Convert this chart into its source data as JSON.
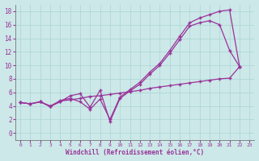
{
  "xlabel": "Windchill (Refroidissement éolien,°C)",
  "bg_color": "#cce8e8",
  "line_color": "#993399",
  "xlim": [
    -0.5,
    23.5
  ],
  "ylim": [
    -1,
    19
  ],
  "xticks": [
    0,
    1,
    2,
    3,
    4,
    5,
    6,
    7,
    8,
    9,
    10,
    11,
    12,
    13,
    14,
    15,
    16,
    17,
    18,
    19,
    20,
    21,
    22,
    23
  ],
  "yticks": [
    0,
    2,
    4,
    6,
    8,
    10,
    12,
    14,
    16,
    18
  ],
  "line1_x": [
    0,
    1,
    2,
    3,
    4,
    5,
    6,
    7,
    8,
    9,
    10,
    11,
    12,
    13,
    14,
    15,
    16,
    17,
    18,
    19,
    20,
    21,
    22
  ],
  "line1_y": [
    4.5,
    4.3,
    4.6,
    3.9,
    4.6,
    5.5,
    5.8,
    3.8,
    6.3,
    1.7,
    5.1,
    6.2,
    7.2,
    8.7,
    10.0,
    11.8,
    13.8,
    15.8,
    16.3,
    16.6,
    16.0,
    12.2,
    9.8
  ],
  "line2_x": [
    0,
    1,
    2,
    3,
    4,
    5,
    6,
    7,
    8,
    9,
    10,
    11,
    12,
    13,
    14,
    15,
    16,
    17,
    18,
    19,
    20,
    21,
    22
  ],
  "line2_y": [
    4.5,
    4.3,
    4.6,
    3.9,
    4.8,
    5.1,
    4.6,
    3.5,
    5.0,
    2.0,
    5.3,
    6.4,
    7.5,
    9.0,
    10.3,
    12.2,
    14.3,
    16.3,
    17.0,
    17.5,
    18.0,
    18.2,
    9.8
  ],
  "line3_x": [
    0,
    1,
    2,
    3,
    4,
    5,
    6,
    7,
    8,
    9,
    10,
    11,
    12,
    13,
    14,
    15,
    16,
    17,
    18,
    19,
    20,
    21,
    22
  ],
  "line3_y": [
    4.5,
    4.3,
    4.6,
    4.0,
    4.7,
    4.9,
    5.1,
    5.4,
    5.5,
    5.7,
    5.9,
    6.1,
    6.3,
    6.6,
    6.8,
    7.0,
    7.2,
    7.4,
    7.6,
    7.8,
    8.0,
    8.1,
    9.8
  ]
}
